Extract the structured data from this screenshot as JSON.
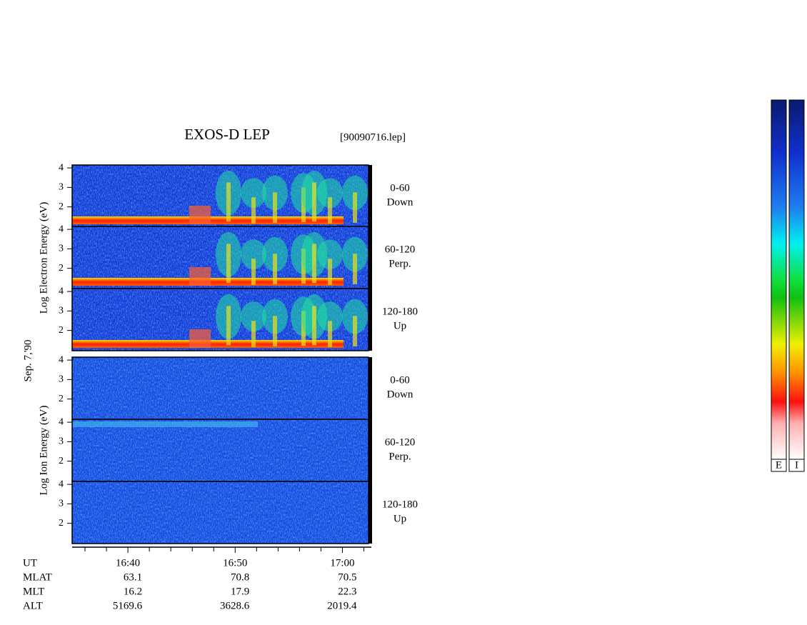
{
  "chart_data": {
    "type": "spectrogram",
    "title": "EXOS-D LEP",
    "file": "[90090716.lep]",
    "date": "Sep. 7,'90",
    "xlim": [
      994.8,
      1022.7
    ],
    "xticks": [
      {
        "value": 1000,
        "label": "16:40"
      },
      {
        "value": 1010,
        "label": "16:50"
      },
      {
        "value": 1020,
        "label": "17:00"
      }
    ],
    "xminor": [
      996,
      998,
      1002,
      1004,
      1006,
      1008,
      1012,
      1014,
      1016,
      1018,
      1022
    ],
    "ylim": [
      0.96,
      4.15
    ],
    "yticks": [
      2,
      3,
      4
    ],
    "groups": [
      {
        "ylabel": "Log  Electron  Energy (eV)",
        "panels": [
          [
            "0-60",
            "Down"
          ],
          [
            "60-120",
            "Perp."
          ],
          [
            "120-180",
            "Up"
          ]
        ]
      },
      {
        "ylabel": "Log  Ion  Energy (eV)",
        "panels": [
          [
            "0-60",
            "Down"
          ],
          [
            "60-120",
            "Perp."
          ],
          [
            "120-180",
            "Up"
          ]
        ]
      }
    ],
    "ephemeris": {
      "labels": [
        "UT",
        "MLAT",
        "MLT",
        "ALT"
      ],
      "rows": [
        [
          63.1,
          70.8,
          70.5
        ],
        [
          16.2,
          17.9,
          22.3
        ],
        [
          5169.6,
          3628.6,
          2019.4
        ]
      ]
    },
    "colorbars": [
      "E",
      "I"
    ]
  }
}
